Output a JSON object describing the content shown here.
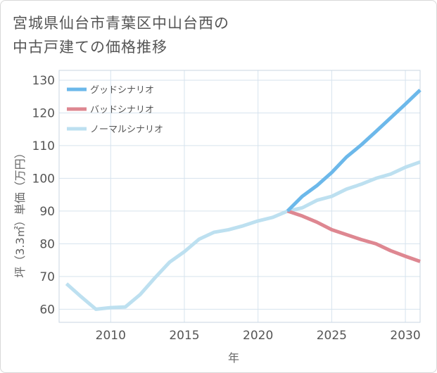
{
  "title_lines": [
    "宮城県仙台市青葉区中山台西の",
    "中古戸建ての価格推移"
  ],
  "chart_data": {
    "type": "line",
    "xlabel": "年",
    "ylabel": "坪（3.3㎡）単価（万円）",
    "xlim": [
      2006.5,
      2031
    ],
    "ylim": [
      56,
      133
    ],
    "x_ticks": [
      2010,
      2015,
      2020,
      2025,
      2030
    ],
    "y_ticks": [
      60,
      70,
      80,
      90,
      100,
      110,
      120,
      130
    ],
    "grid": true,
    "legend_position": "top-left",
    "series": [
      {
        "name": "グッドシナリオ",
        "color": "#6cb8ea",
        "x": [
          2022,
          2023,
          2024,
          2025,
          2026,
          2027,
          2028,
          2029,
          2030,
          2031
        ],
        "y": [
          90.0,
          94.5,
          97.8,
          101.8,
          106.5,
          110.2,
          114.3,
          118.5,
          122.7,
          127.0
        ]
      },
      {
        "name": "バッドシナリオ",
        "color": "#de8791",
        "x": [
          2022,
          2023,
          2024,
          2025,
          2026,
          2027,
          2028,
          2029,
          2030,
          2031
        ],
        "y": [
          90.0,
          88.5,
          86.6,
          84.3,
          82.8,
          81.3,
          80.0,
          77.9,
          76.2,
          74.6
        ]
      },
      {
        "name": "ノーマルシナリオ",
        "color": "#bde0f0",
        "x": [
          2007,
          2008,
          2009,
          2010,
          2011,
          2012,
          2013,
          2014,
          2015,
          2016,
          2017,
          2018,
          2019,
          2020,
          2021,
          2022,
          2023,
          2024,
          2025,
          2026,
          2027,
          2028,
          2029,
          2030,
          2031
        ],
        "y": [
          67.8,
          63.8,
          60.0,
          60.5,
          60.7,
          64.5,
          69.6,
          74.4,
          77.6,
          81.4,
          83.5,
          84.3,
          85.5,
          87.0,
          88.1,
          90.0,
          91.0,
          93.3,
          94.5,
          96.7,
          98.2,
          100.0,
          101.3,
          103.4,
          105.0
        ]
      }
    ]
  }
}
